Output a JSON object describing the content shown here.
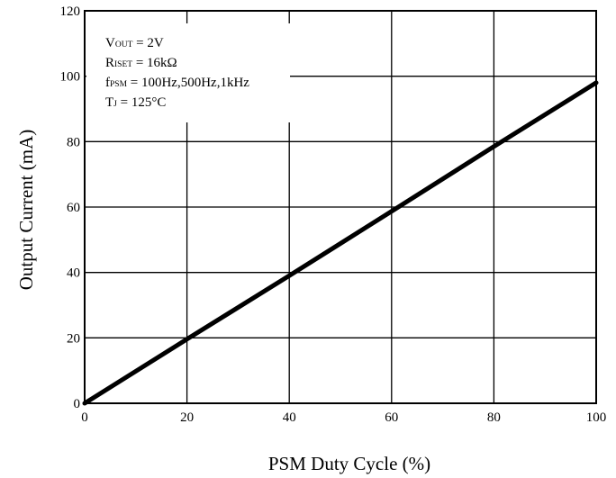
{
  "chart_data": {
    "type": "line",
    "title": "",
    "xlabel": "PSM Duty Cycle (%)",
    "ylabel": "Output Current (mA)",
    "xlim": [
      0,
      100
    ],
    "ylim": [
      0,
      120
    ],
    "xticks": [
      "0",
      "20",
      "40",
      "60",
      "80",
      "100"
    ],
    "yticks": [
      "0",
      "20",
      "40",
      "60",
      "80",
      "100",
      "120"
    ],
    "grid": true,
    "series": [
      {
        "values": [
          {
            "x": 0,
            "y": 0
          },
          {
            "x": 20,
            "y": 19.6
          },
          {
            "x": 40,
            "y": 39
          },
          {
            "x": 60,
            "y": 58.7
          },
          {
            "x": 80,
            "y": 78.5
          },
          {
            "x": 100,
            "y": 98
          }
        ]
      }
    ],
    "annotation": {
      "lines": [
        {
          "base": "V",
          "sub": "OUT",
          "rest": " = 2V"
        },
        {
          "base": "R",
          "sub": "ISET",
          "rest": " = 16kΩ"
        },
        {
          "base": "f",
          "sub": "PSM",
          "rest": " = 100Hz,500Hz,1kHz"
        },
        {
          "base": "T",
          "sub": "J",
          "rest": " = 125°C"
        }
      ]
    }
  }
}
